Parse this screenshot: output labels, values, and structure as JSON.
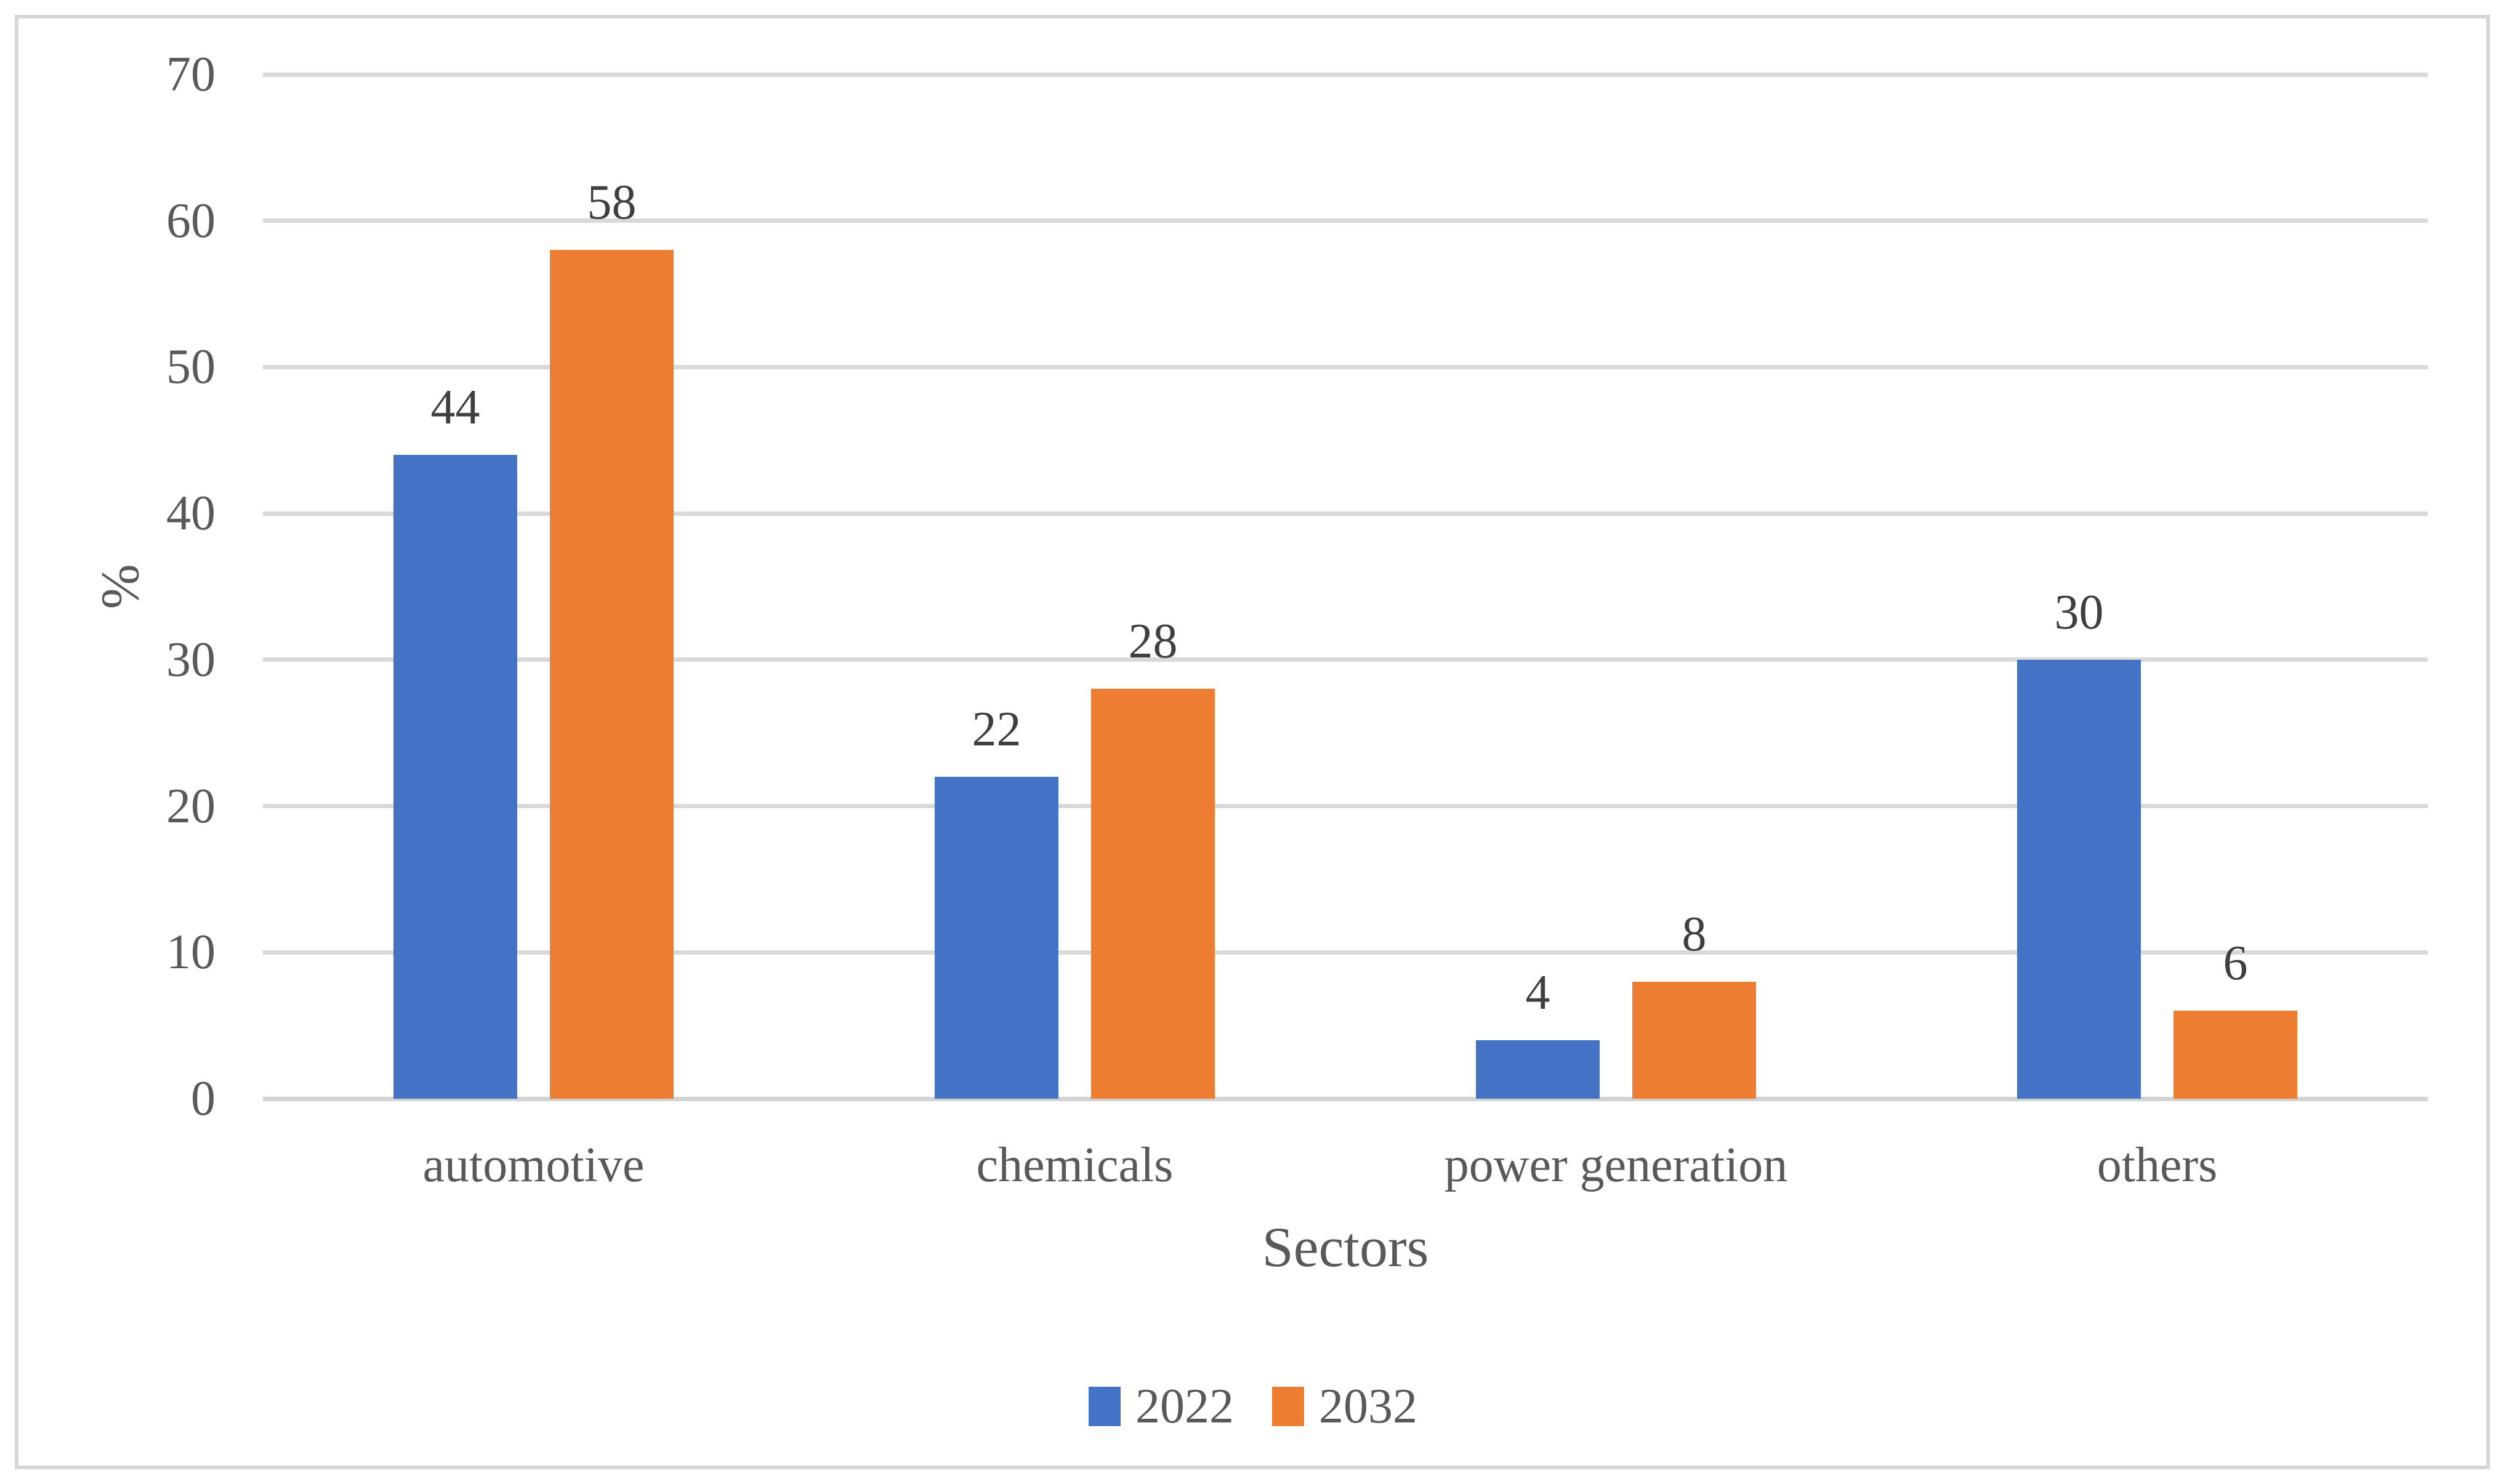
{
  "chart_data": {
    "type": "bar",
    "title": "",
    "xlabel": "Sectors",
    "ylabel": "%",
    "categories": [
      "automotive",
      "chemicals",
      "power generation",
      "others"
    ],
    "series": [
      {
        "name": "2022",
        "color": "#4472C4",
        "values": [
          44,
          22,
          4,
          30
        ]
      },
      {
        "name": "2032",
        "color": "#ED7D31",
        "values": [
          58,
          28,
          8,
          6
        ]
      }
    ],
    "ylim": [
      0,
      70
    ],
    "yticks": [
      0,
      10,
      20,
      30,
      40,
      50,
      60,
      70
    ],
    "grid": true,
    "data_labels": true,
    "legend_position": "bottom-center",
    "bar_orientation": "vertical"
  },
  "colors": {
    "gridline": "#d9d9d9",
    "axis_line": "#d2d2d2",
    "figure_border": "#d6d6d6",
    "axis_text": "#595959",
    "data_label_text": "#3f3f3f",
    "background": "#ffffff"
  }
}
